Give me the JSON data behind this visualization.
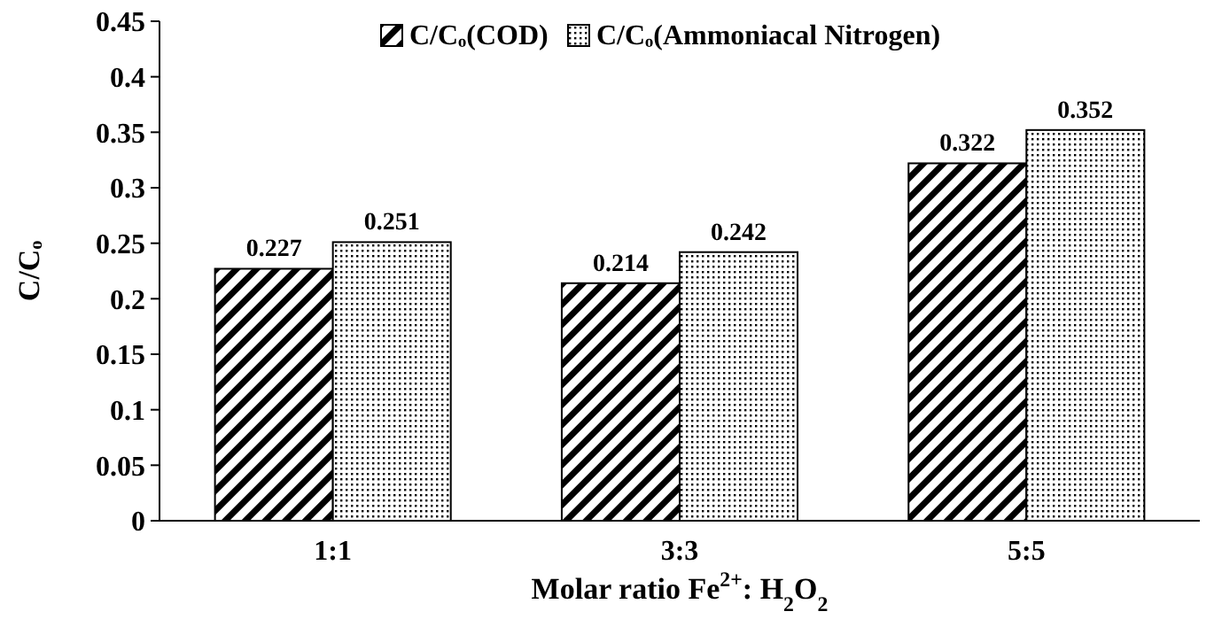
{
  "chart_data": {
    "type": "bar",
    "categories": [
      "1:1",
      "3:3",
      "5:5"
    ],
    "series": [
      {
        "name": "C/Cₒ(COD)",
        "color": "#000000",
        "values": [
          0.227,
          0.214,
          0.322
        ]
      },
      {
        "name": "C/Cₒ(Ammoniacal Nitrogen)",
        "color": "#000000",
        "values": [
          0.251,
          0.242,
          0.352
        ]
      }
    ],
    "ylim": [
      0,
      0.45
    ],
    "yticks": [
      0,
      0.05,
      0.1,
      0.15,
      0.2,
      0.25,
      0.3,
      0.35,
      0.4,
      0.45
    ],
    "ylabel": "C/Cₒ",
    "xlabel": "Molar ratio Fe$^{2+}$: H$_{2}$O$_{2}$",
    "data_labels": true,
    "legend": "top",
    "grid": false
  }
}
